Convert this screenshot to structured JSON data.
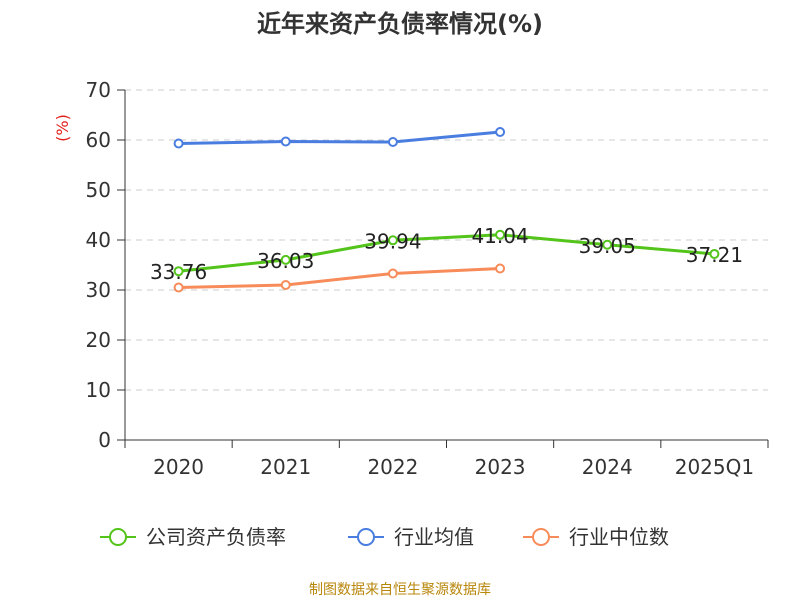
{
  "chart_data": {
    "type": "line",
    "title": "近年来资产负债率情况(%)",
    "ylabel": "(%)",
    "categories": [
      "2020",
      "2021",
      "2022",
      "2023",
      "2024",
      "2025Q1"
    ],
    "ylim": [
      0,
      70
    ],
    "yticks": [
      0,
      10,
      20,
      30,
      40,
      50,
      60,
      70
    ],
    "grid": true,
    "legend_position": "bottom",
    "series": [
      {
        "name": "公司资产负债率",
        "color": "#52c41a",
        "values": [
          33.76,
          36.03,
          39.94,
          41.04,
          39.05,
          37.21
        ],
        "labels": [
          "33.76",
          "36.03",
          "39.94",
          "41.04",
          "39.05",
          "37.21"
        ]
      },
      {
        "name": "行业均值",
        "color": "#4a7de0",
        "values": [
          59.3,
          59.7,
          59.6,
          61.6,
          null,
          null
        ]
      },
      {
        "name": "行业中位数",
        "color": "#f78c5a",
        "values": [
          30.5,
          31.0,
          33.3,
          34.3,
          null,
          null
        ]
      }
    ]
  },
  "source": "制图数据来自恒生聚源数据库"
}
